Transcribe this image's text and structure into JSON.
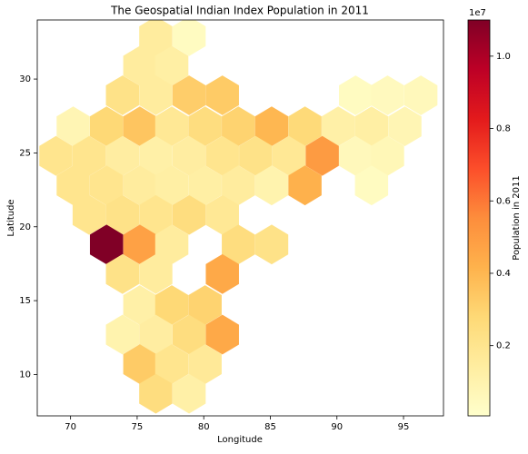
{
  "chart_data": {
    "type": "hexbin",
    "title": "The Geospatial Indian Index Population in 2011",
    "xlabel": "Longitude",
    "ylabel": "Latitude",
    "x": [
      76.4,
      78.9,
      75.2,
      77.6,
      73.9,
      76.4,
      78.9,
      81.4,
      91.4,
      93.8,
      96.3,
      70.2,
      72.7,
      75.2,
      77.6,
      80.1,
      82.6,
      85.1,
      87.6,
      90.1,
      92.6,
      95.1,
      68.9,
      71.4,
      73.9,
      76.4,
      78.9,
      81.4,
      83.9,
      86.4,
      88.9,
      91.4,
      93.8,
      70.2,
      72.7,
      75.2,
      77.6,
      80.1,
      82.6,
      85.1,
      87.6,
      92.6,
      71.4,
      73.9,
      76.4,
      78.9,
      81.4,
      72.7,
      75.2,
      77.6,
      82.6,
      85.1,
      73.9,
      76.4,
      81.4,
      75.2,
      77.6,
      80.1,
      73.9,
      76.4,
      78.9,
      81.4,
      75.2,
      77.6,
      80.1,
      76.4,
      78.9
    ],
    "y": [
      32.9,
      32.9,
      30.9,
      30.9,
      28.9,
      28.9,
      28.9,
      28.9,
      28.9,
      28.9,
      28.9,
      26.8,
      26.8,
      26.8,
      26.8,
      26.8,
      26.8,
      26.8,
      26.8,
      26.8,
      26.8,
      26.8,
      24.8,
      24.8,
      24.8,
      24.8,
      24.8,
      24.8,
      24.8,
      24.8,
      24.8,
      24.8,
      24.8,
      22.8,
      22.8,
      22.8,
      22.8,
      22.8,
      22.8,
      22.8,
      22.8,
      22.8,
      20.8,
      20.8,
      20.8,
      20.8,
      20.8,
      18.8,
      18.8,
      18.8,
      18.8,
      18.8,
      16.8,
      16.8,
      16.8,
      14.7,
      14.7,
      14.7,
      12.7,
      12.7,
      12.7,
      12.7,
      10.7,
      10.7,
      10.7,
      8.7,
      8.7
    ],
    "values": [
      0.15,
      0.04,
      0.15,
      0.13,
      0.22,
      0.15,
      0.32,
      0.33,
      0.04,
      0.05,
      0.06,
      0.08,
      0.28,
      0.35,
      0.18,
      0.25,
      0.3,
      0.4,
      0.27,
      0.12,
      0.13,
      0.08,
      0.2,
      0.2,
      0.14,
      0.12,
      0.14,
      0.2,
      0.22,
      0.18,
      0.5,
      0.06,
      0.07,
      0.2,
      0.2,
      0.15,
      0.13,
      0.13,
      0.15,
      0.1,
      0.42,
      0.04,
      0.2,
      0.22,
      0.2,
      0.25,
      0.18,
      1.1,
      0.48,
      0.15,
      0.25,
      0.22,
      0.22,
      0.15,
      0.45,
      0.12,
      0.28,
      0.3,
      0.1,
      0.14,
      0.25,
      0.45,
      0.33,
      0.2,
      0.17,
      0.25,
      0.12
    ],
    "cmap": "YlOrRd",
    "xlim": [
      67.5,
      98
    ],
    "xticks": [
      70,
      75,
      80,
      85,
      90,
      95
    ],
    "ylim": [
      7.2,
      34
    ],
    "yticks": [
      10,
      15,
      20,
      25,
      30
    ],
    "colorbar_label": "Population in 2011",
    "colorbar_offset_label": "1e7",
    "clim": [
      0.006,
      1.1
    ],
    "cticks": [
      0.2,
      0.4,
      0.6,
      0.8,
      {
        "value": 1,
        "label": "1.0"
      }
    ]
  }
}
